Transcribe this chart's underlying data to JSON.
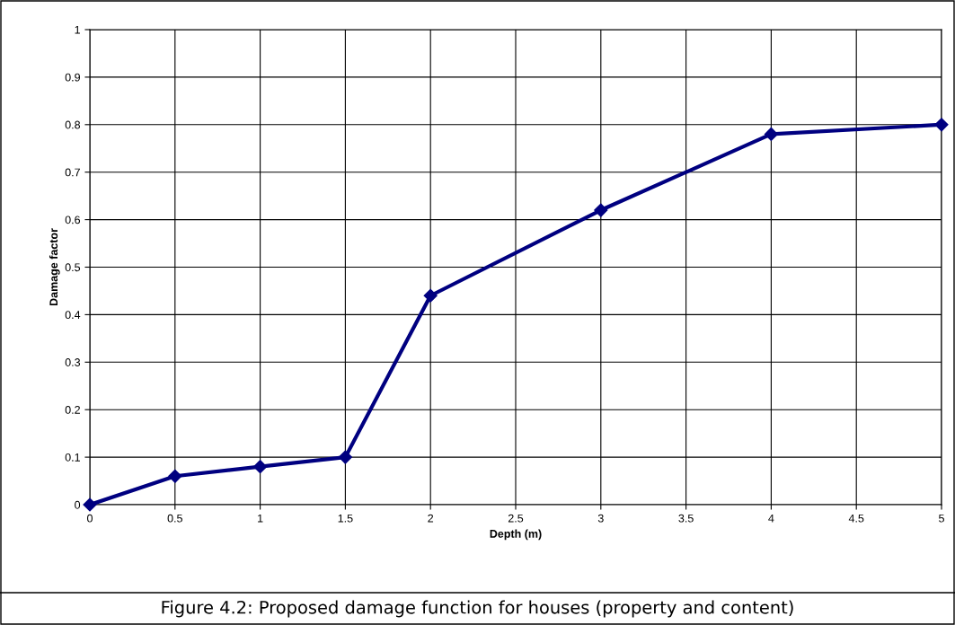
{
  "chart_data": {
    "type": "line",
    "xlabel": "Depth (m)",
    "ylabel": "Damage factor",
    "x": [
      0,
      0.5,
      1,
      1.5,
      2,
      3,
      4,
      5
    ],
    "series": [
      {
        "color": "#000080",
        "values": [
          0,
          0.06,
          0.08,
          0.1,
          0.44,
          0.62,
          0.78,
          0.8
        ]
      }
    ],
    "xlim": [
      0,
      5
    ],
    "xticks": [
      0,
      0.5,
      1,
      1.5,
      2,
      2.5,
      3,
      3.5,
      4,
      4.5,
      5
    ],
    "ylim": [
      0,
      1
    ],
    "yticks": [
      0,
      0.1,
      0.2,
      0.3,
      0.4,
      0.5,
      0.6,
      0.7,
      0.8,
      0.9,
      1
    ],
    "grid": true,
    "marker": "diamond",
    "line_style": "solid",
    "annotations": [
      "Figure 4.2: Proposed damage function for houses (property and content)"
    ]
  }
}
